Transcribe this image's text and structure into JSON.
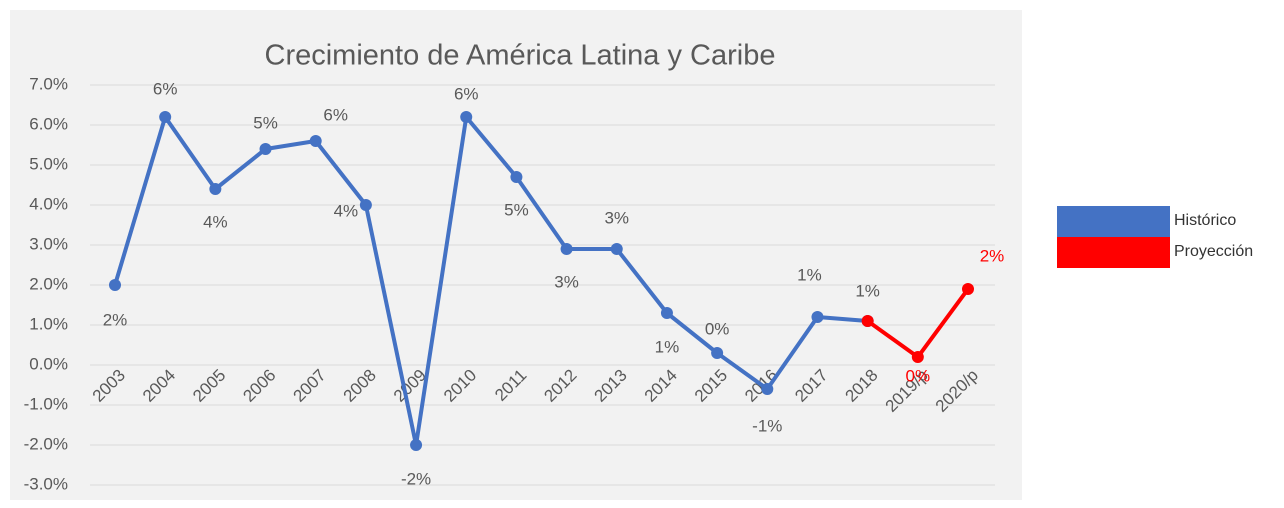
{
  "chart_data": {
    "type": "line",
    "title": "Crecimiento de América Latina y Caribe",
    "categories": [
      "2003",
      "2004",
      "2005",
      "2006",
      "2007",
      "2008",
      "2009",
      "2010",
      "2011",
      "2012",
      "2013",
      "2014",
      "2015",
      "2016",
      "2017",
      "2018",
      "2019/p",
      "2020/p"
    ],
    "series": [
      {
        "name": "Histórico",
        "color": "#4472c4",
        "values": [
          2.0,
          6.2,
          4.4,
          5.4,
          5.6,
          4.0,
          -2.0,
          6.2,
          4.7,
          2.9,
          2.9,
          1.3,
          0.3,
          -0.6,
          1.2,
          1.1,
          null,
          null
        ],
        "value_labels": [
          "2%",
          "6%",
          "4%",
          "5%",
          "6%",
          "4%",
          "-2%",
          "6%",
          "5%",
          "3%",
          "3%",
          "1%",
          "0%",
          "-1%",
          "1%",
          "1%",
          null,
          null
        ]
      },
      {
        "name": "Proyección",
        "color": "#ff0000",
        "values": [
          null,
          null,
          null,
          null,
          null,
          null,
          null,
          null,
          null,
          null,
          null,
          null,
          null,
          null,
          null,
          1.1,
          0.2,
          1.9
        ],
        "value_labels": [
          null,
          null,
          null,
          null,
          null,
          null,
          null,
          null,
          null,
          null,
          null,
          null,
          null,
          null,
          null,
          null,
          "0%",
          "2%"
        ]
      }
    ],
    "ylim": [
      -3,
      7
    ],
    "yticks": [
      {
        "value": -3,
        "label": "-3.0%"
      },
      {
        "value": -2,
        "label": "-2.0%"
      },
      {
        "value": -1,
        "label": "-1.0%"
      },
      {
        "value": 0,
        "label": "0.0%"
      },
      {
        "value": 1,
        "label": "1.0%"
      },
      {
        "value": 2,
        "label": "2.0%"
      },
      {
        "value": 3,
        "label": "3.0%"
      },
      {
        "value": 4,
        "label": "4.0%"
      },
      {
        "value": 5,
        "label": "5.0%"
      },
      {
        "value": 6,
        "label": "6.0%"
      },
      {
        "value": 7,
        "label": "7.0%"
      }
    ],
    "grid": true,
    "legend": "right"
  }
}
